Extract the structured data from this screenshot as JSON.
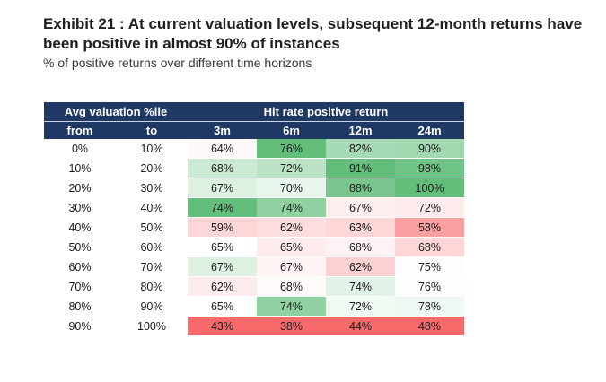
{
  "title": "Exhibit 21 : At current valuation levels, subsequent 12-month returns have been positive in almost 90% of instances",
  "subtitle": "% of positive returns over different time horizons",
  "colors": {
    "header_bg": "#1f3864",
    "high": "#63be7b",
    "mid": "#ffffff",
    "low": "#f8696b"
  },
  "chart_data": {
    "type": "heatmap",
    "row_group_header": "Avg valuation %ile",
    "row_columns": [
      "from",
      "to"
    ],
    "column_group_header": "Hit rate positive return",
    "columns": [
      "3m",
      "6m",
      "12m",
      "24m"
    ],
    "rows": [
      {
        "from": "0%",
        "to": "10%",
        "values": [
          "64%",
          "76%",
          "82%",
          "90%"
        ]
      },
      {
        "from": "10%",
        "to": "20%",
        "values": [
          "68%",
          "72%",
          "91%",
          "98%"
        ]
      },
      {
        "from": "20%",
        "to": "30%",
        "values": [
          "67%",
          "70%",
          "88%",
          "100%"
        ]
      },
      {
        "from": "30%",
        "to": "40%",
        "values": [
          "74%",
          "74%",
          "67%",
          "72%"
        ]
      },
      {
        "from": "40%",
        "to": "50%",
        "values": [
          "59%",
          "62%",
          "63%",
          "58%"
        ]
      },
      {
        "from": "50%",
        "to": "60%",
        "values": [
          "65%",
          "65%",
          "68%",
          "68%"
        ]
      },
      {
        "from": "60%",
        "to": "70%",
        "values": [
          "67%",
          "67%",
          "62%",
          "75%"
        ]
      },
      {
        "from": "70%",
        "to": "80%",
        "values": [
          "62%",
          "68%",
          "74%",
          "76%"
        ]
      },
      {
        "from": "80%",
        "to": "90%",
        "values": [
          "65%",
          "74%",
          "72%",
          "78%"
        ]
      },
      {
        "from": "90%",
        "to": "100%",
        "values": [
          "43%",
          "38%",
          "44%",
          "48%"
        ]
      }
    ]
  }
}
